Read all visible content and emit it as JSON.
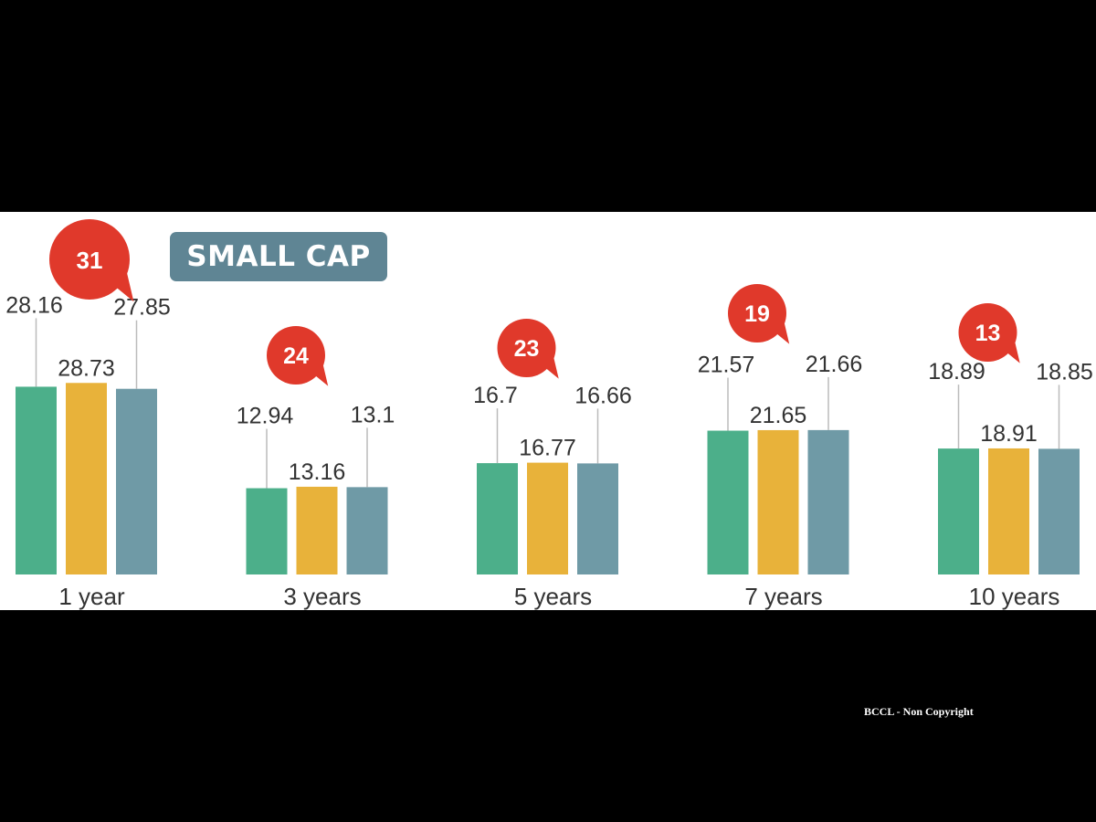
{
  "chart_data": {
    "type": "bar",
    "title": "SMALL CAP",
    "categories": [
      "1 year",
      "3 years",
      "5 years",
      "7 years",
      "10 years"
    ],
    "series": [
      {
        "values": [
          28.16,
          12.94,
          16.7,
          21.57,
          18.89
        ]
      },
      {
        "values": [
          28.73,
          13.16,
          16.77,
          21.65,
          18.91
        ]
      },
      {
        "values": [
          27.85,
          13.1,
          16.66,
          21.66,
          18.85
        ]
      }
    ],
    "bubbles": [
      "31",
      "24",
      "23",
      "19",
      "13"
    ],
    "ylim": [
      0,
      30
    ],
    "grid": false,
    "colors": {
      "series": [
        "#4caf8a",
        "#e8b23a",
        "#6f9aa6"
      ],
      "bubble": "#e0392b",
      "leader": "#bbbbbb",
      "label": "#333333"
    }
  },
  "footer_note": "BCCL - Non Copyright"
}
